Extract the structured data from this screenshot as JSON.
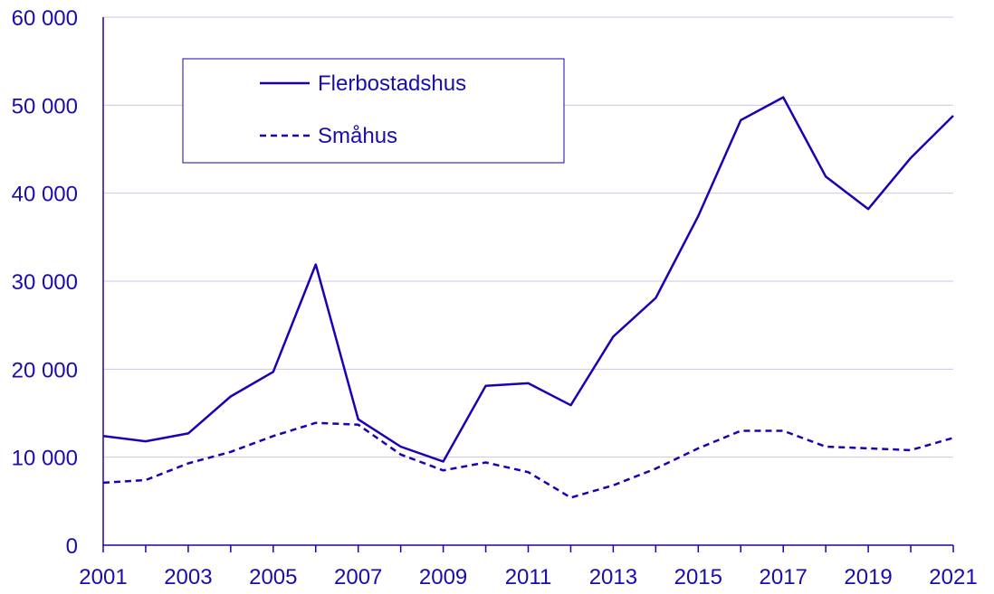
{
  "colors": {
    "series": "#1e00b4",
    "grid": "#c8c8e6",
    "axis": "#1e00b4",
    "text": "#1a0dab"
  },
  "chart_data": {
    "type": "line",
    "title": "",
    "xlabel": "",
    "ylabel": "",
    "x": [
      2001,
      2002,
      2003,
      2004,
      2005,
      2006,
      2007,
      2008,
      2009,
      2010,
      2011,
      2012,
      2013,
      2014,
      2015,
      2016,
      2017,
      2018,
      2019,
      2020,
      2021
    ],
    "xlim": [
      2001,
      2021
    ],
    "ylim": [
      0,
      60000
    ],
    "x_tick_labels": [
      "2001",
      "2003",
      "2005",
      "2007",
      "2009",
      "2011",
      "2013",
      "2015",
      "2017",
      "2019",
      "2021"
    ],
    "y_tick_labels": [
      "0",
      "10 000",
      "20 000",
      "30 000",
      "40 000",
      "50 000",
      "60 000"
    ],
    "grid": true,
    "legend_position": "top-left",
    "series": [
      {
        "name": "Flerbostadshus",
        "style": "solid",
        "values": [
          12400,
          11800,
          12700,
          16900,
          19700,
          31900,
          14300,
          11200,
          9500,
          18100,
          18400,
          15900,
          23700,
          28100,
          37400,
          48300,
          50900,
          41900,
          38200,
          44000,
          48800
        ]
      },
      {
        "name": "Småhus",
        "style": "dashed",
        "values": [
          7100,
          7400,
          9300,
          10600,
          12400,
          13900,
          13700,
          10300,
          8500,
          9400,
          8300,
          5400,
          6800,
          8700,
          11000,
          13000,
          13000,
          11200,
          11000,
          10800,
          12200
        ]
      }
    ]
  }
}
